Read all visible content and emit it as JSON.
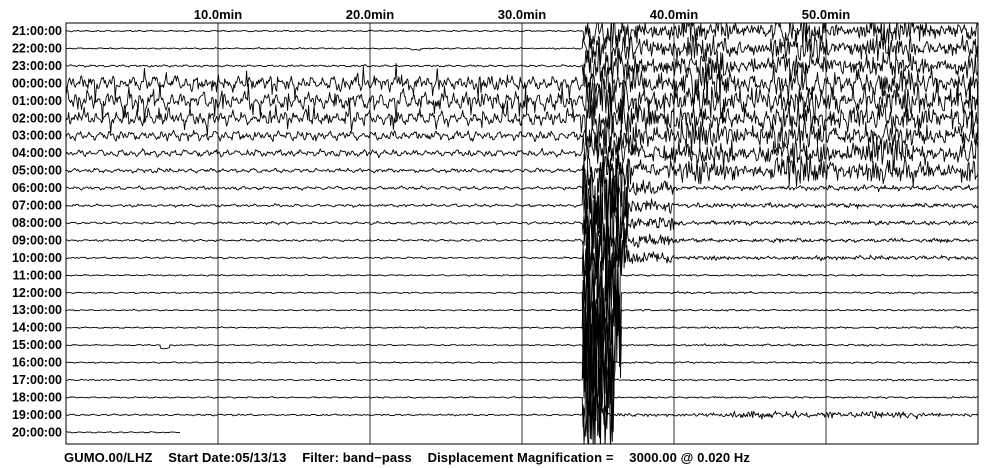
{
  "chart_data": {
    "type": "line",
    "title": "",
    "xlabel": "",
    "ylabel": "",
    "x_tick_labels": [
      "10.0min",
      "20.0min",
      "30.0min",
      "40.0min",
      "50.0min"
    ],
    "x_ticks_min": [
      10,
      20,
      30,
      40,
      50
    ],
    "xlim_min": [
      0,
      60
    ],
    "grid": true,
    "legend": "none",
    "hour_labels": [
      "21:00:00",
      "22:00:00",
      "23:00:00",
      "00:00:00",
      "01:00:00",
      "02:00:00",
      "03:00:00",
      "04:00:00",
      "05:00:00",
      "06:00:00",
      "07:00:00",
      "08:00:00",
      "09:00:00",
      "10:00:00",
      "11:00:00",
      "12:00:00",
      "13:00:00",
      "14:00:00",
      "15:00:00",
      "16:00:00",
      "17:00:00",
      "18:00:00",
      "19:00:00",
      "20:00:00"
    ],
    "noise_level": [
      0.2,
      0.2,
      0.3,
      2.2,
      2.4,
      2.0,
      1.4,
      1.0,
      0.6,
      0.5,
      0.4,
      0.35,
      0.3,
      0.25,
      0.2,
      0.2,
      0.2,
      0.2,
      0.2,
      0.2,
      0.2,
      0.2,
      0.25,
      0.2
    ],
    "quake_start_min": 34,
    "quake_peak_min": 36,
    "last_row_end_min": 7.5,
    "trace_color": "#000000",
    "grid_color": "#000000"
  },
  "footer": {
    "station": "GUMO.00/LHZ",
    "start_date": "Start Date:05/13/13",
    "filter": "Filter: band−pass",
    "magnification": "Displacement Magnification =",
    "magnification_value": "3000.00 @ 0.020 Hz"
  }
}
